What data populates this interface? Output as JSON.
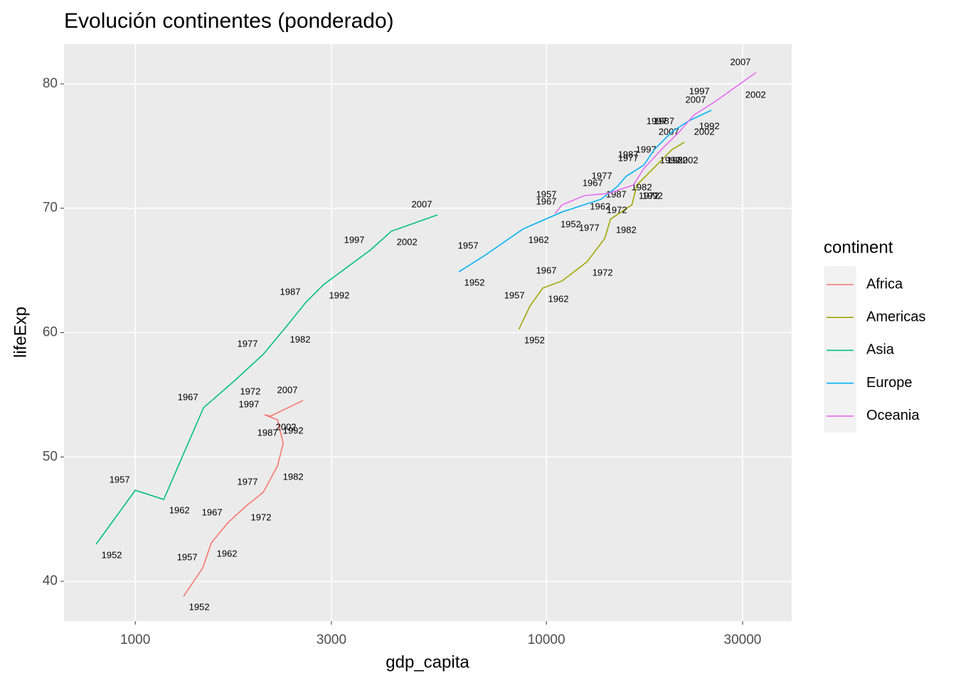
{
  "chart_data": {
    "type": "line",
    "title": "Evolución continentes (ponderado)",
    "x_label": "gdp_capita",
    "y_label": "lifeExp",
    "legend_title": "continent",
    "x_scale": "log",
    "grid": true,
    "legend_position": "right",
    "xlim": [
      671,
      39500
    ],
    "ylim": [
      36.8,
      83.2
    ],
    "xticks": [
      1000,
      3000,
      10000,
      30000
    ],
    "yticks": [
      40,
      50,
      60,
      70,
      80
    ],
    "years": [
      1952,
      1957,
      1962,
      1967,
      1972,
      1977,
      1982,
      1987,
      1992,
      1997,
      2002,
      2007
    ],
    "series": [
      {
        "name": "Africa",
        "color": "#F8766D",
        "x": [
          1311,
          1460,
          1531,
          1678,
          1853,
          2047,
          2218,
          2290,
          2218,
          2063,
          2131,
          2559
        ],
        "values": [
          38.8,
          41.09,
          43.09,
          44.69,
          46.01,
          47.15,
          49.27,
          51.1,
          52.99,
          53.39,
          53.28,
          54.54
        ]
      },
      {
        "name": "Americas",
        "color": "#A3A500",
        "x": [
          8570,
          9125,
          9795,
          10910,
          12550,
          13870,
          14320,
          16140,
          16600,
          19070,
          20240,
          21660
        ],
        "values": [
          60.26,
          62.15,
          63.58,
          64.15,
          65.69,
          67.58,
          69.13,
          70.27,
          71.87,
          73.88,
          74.74,
          75.31
        ]
      },
      {
        "name": "Asia",
        "color": "#00BF7D",
        "x": [
          803,
          1000,
          1173,
          1466,
          1745,
          2047,
          2307,
          2600,
          2871,
          3722,
          4197,
          5433
        ],
        "values": [
          42.98,
          47.32,
          46.58,
          53.96,
          56.14,
          58.25,
          60.31,
          62.43,
          63.86,
          66.61,
          68.15,
          69.47
        ]
      },
      {
        "name": "Europe",
        "color": "#00B0F6",
        "x": [
          6124,
          7041,
          8770,
          10910,
          13590,
          14890,
          15620,
          17260,
          18320,
          20240,
          22180,
          25180
        ],
        "values": [
          64.89,
          66.15,
          68.33,
          69.7,
          70.73,
          71.76,
          72.56,
          73.48,
          74.74,
          76.17,
          77.02,
          77.88
        ]
      },
      {
        "name": "Oceania",
        "color": "#E76BF3",
        "x": [
          10500,
          10910,
          12380,
          14150,
          16270,
          17260,
          19070,
          21090,
          22810,
          25710,
          29560,
          32360
        ],
        "values": [
          69.59,
          70.27,
          71.02,
          71.19,
          71.87,
          73.19,
          74.74,
          76.17,
          77.48,
          78.57,
          80.0,
          80.92
        ]
      }
    ]
  }
}
